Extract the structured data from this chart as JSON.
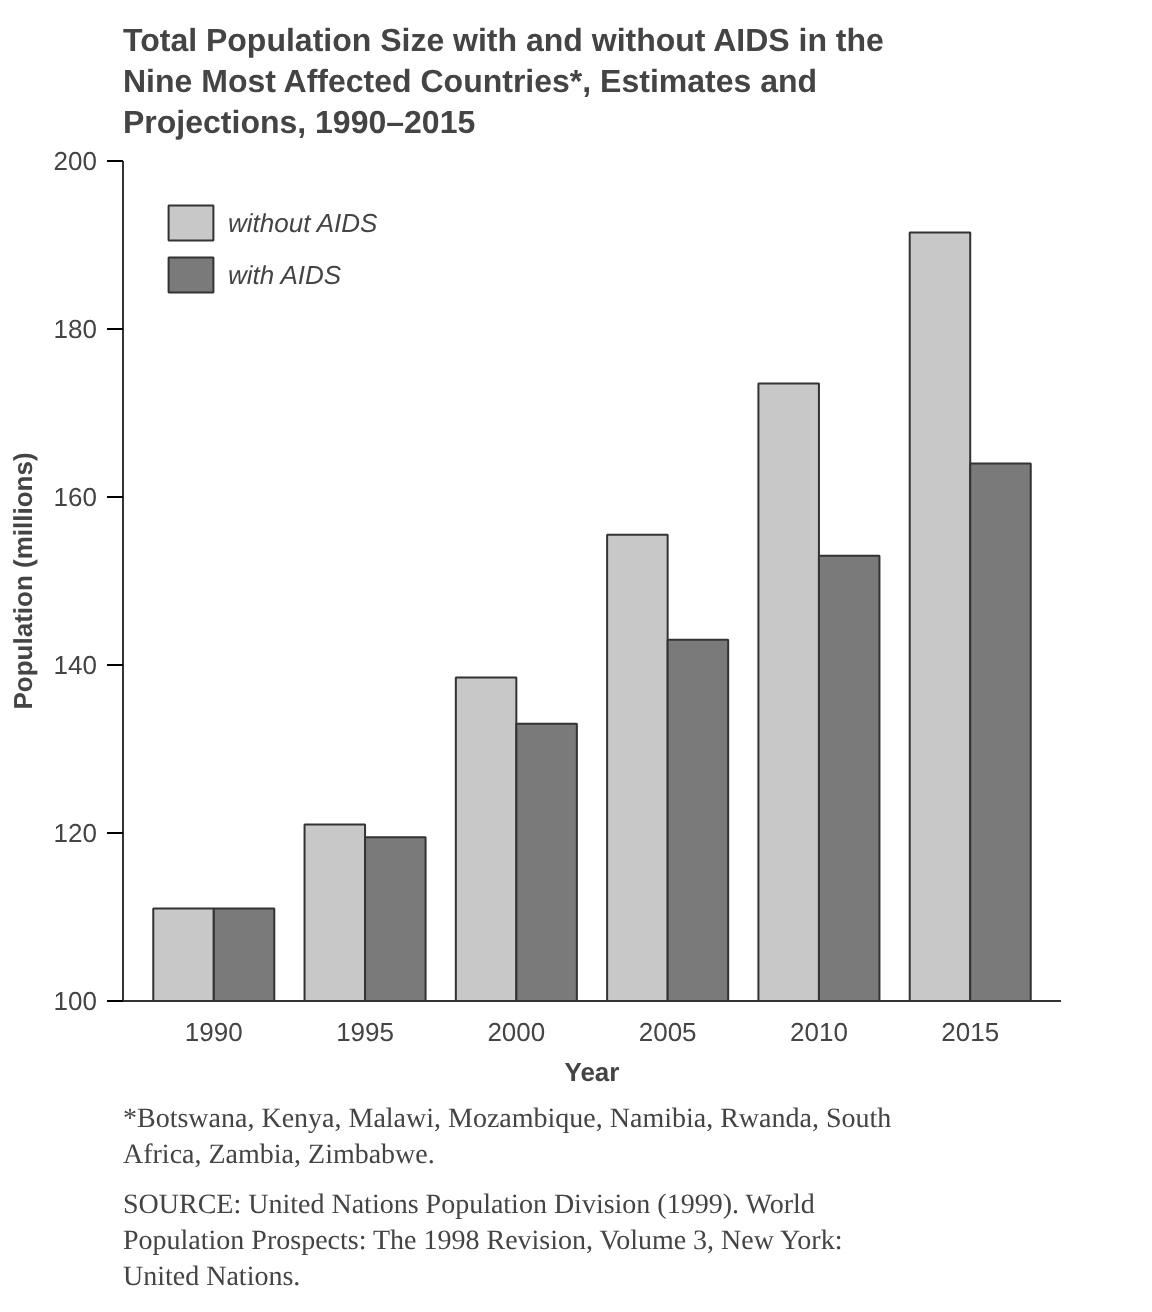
{
  "chart_data": {
    "type": "bar",
    "title": "Total Population Size with and without AIDS in the Nine Most Affected Countries*, Estimates and Projections, 1990–2015",
    "xlabel": "Year",
    "ylabel": "Population (millions)",
    "categories": [
      "1990",
      "1995",
      "2000",
      "2005",
      "2010",
      "2015"
    ],
    "series": [
      {
        "name": "without AIDS",
        "color": "#c8c8c8",
        "values": [
          111,
          121,
          138.5,
          155.5,
          173.5,
          191.5
        ]
      },
      {
        "name": "with AIDS",
        "color": "#7a7a7a",
        "values": [
          111,
          119.5,
          133,
          143,
          153,
          164
        ]
      }
    ],
    "ylim": [
      100,
      200
    ],
    "yticks": [
      100,
      120,
      140,
      160,
      180,
      200
    ],
    "grid": false,
    "legend": "top left",
    "annotations": [
      "*Botswana, Kenya, Malawi, Mozambique, Namibia, Rwanda, South Africa, Zambia, Zimbabwe.",
      "SOURCE: United Nations Population Division (1999). World Population Prospects: The 1998 Revision, Volume 3, New York: United Nations."
    ]
  }
}
